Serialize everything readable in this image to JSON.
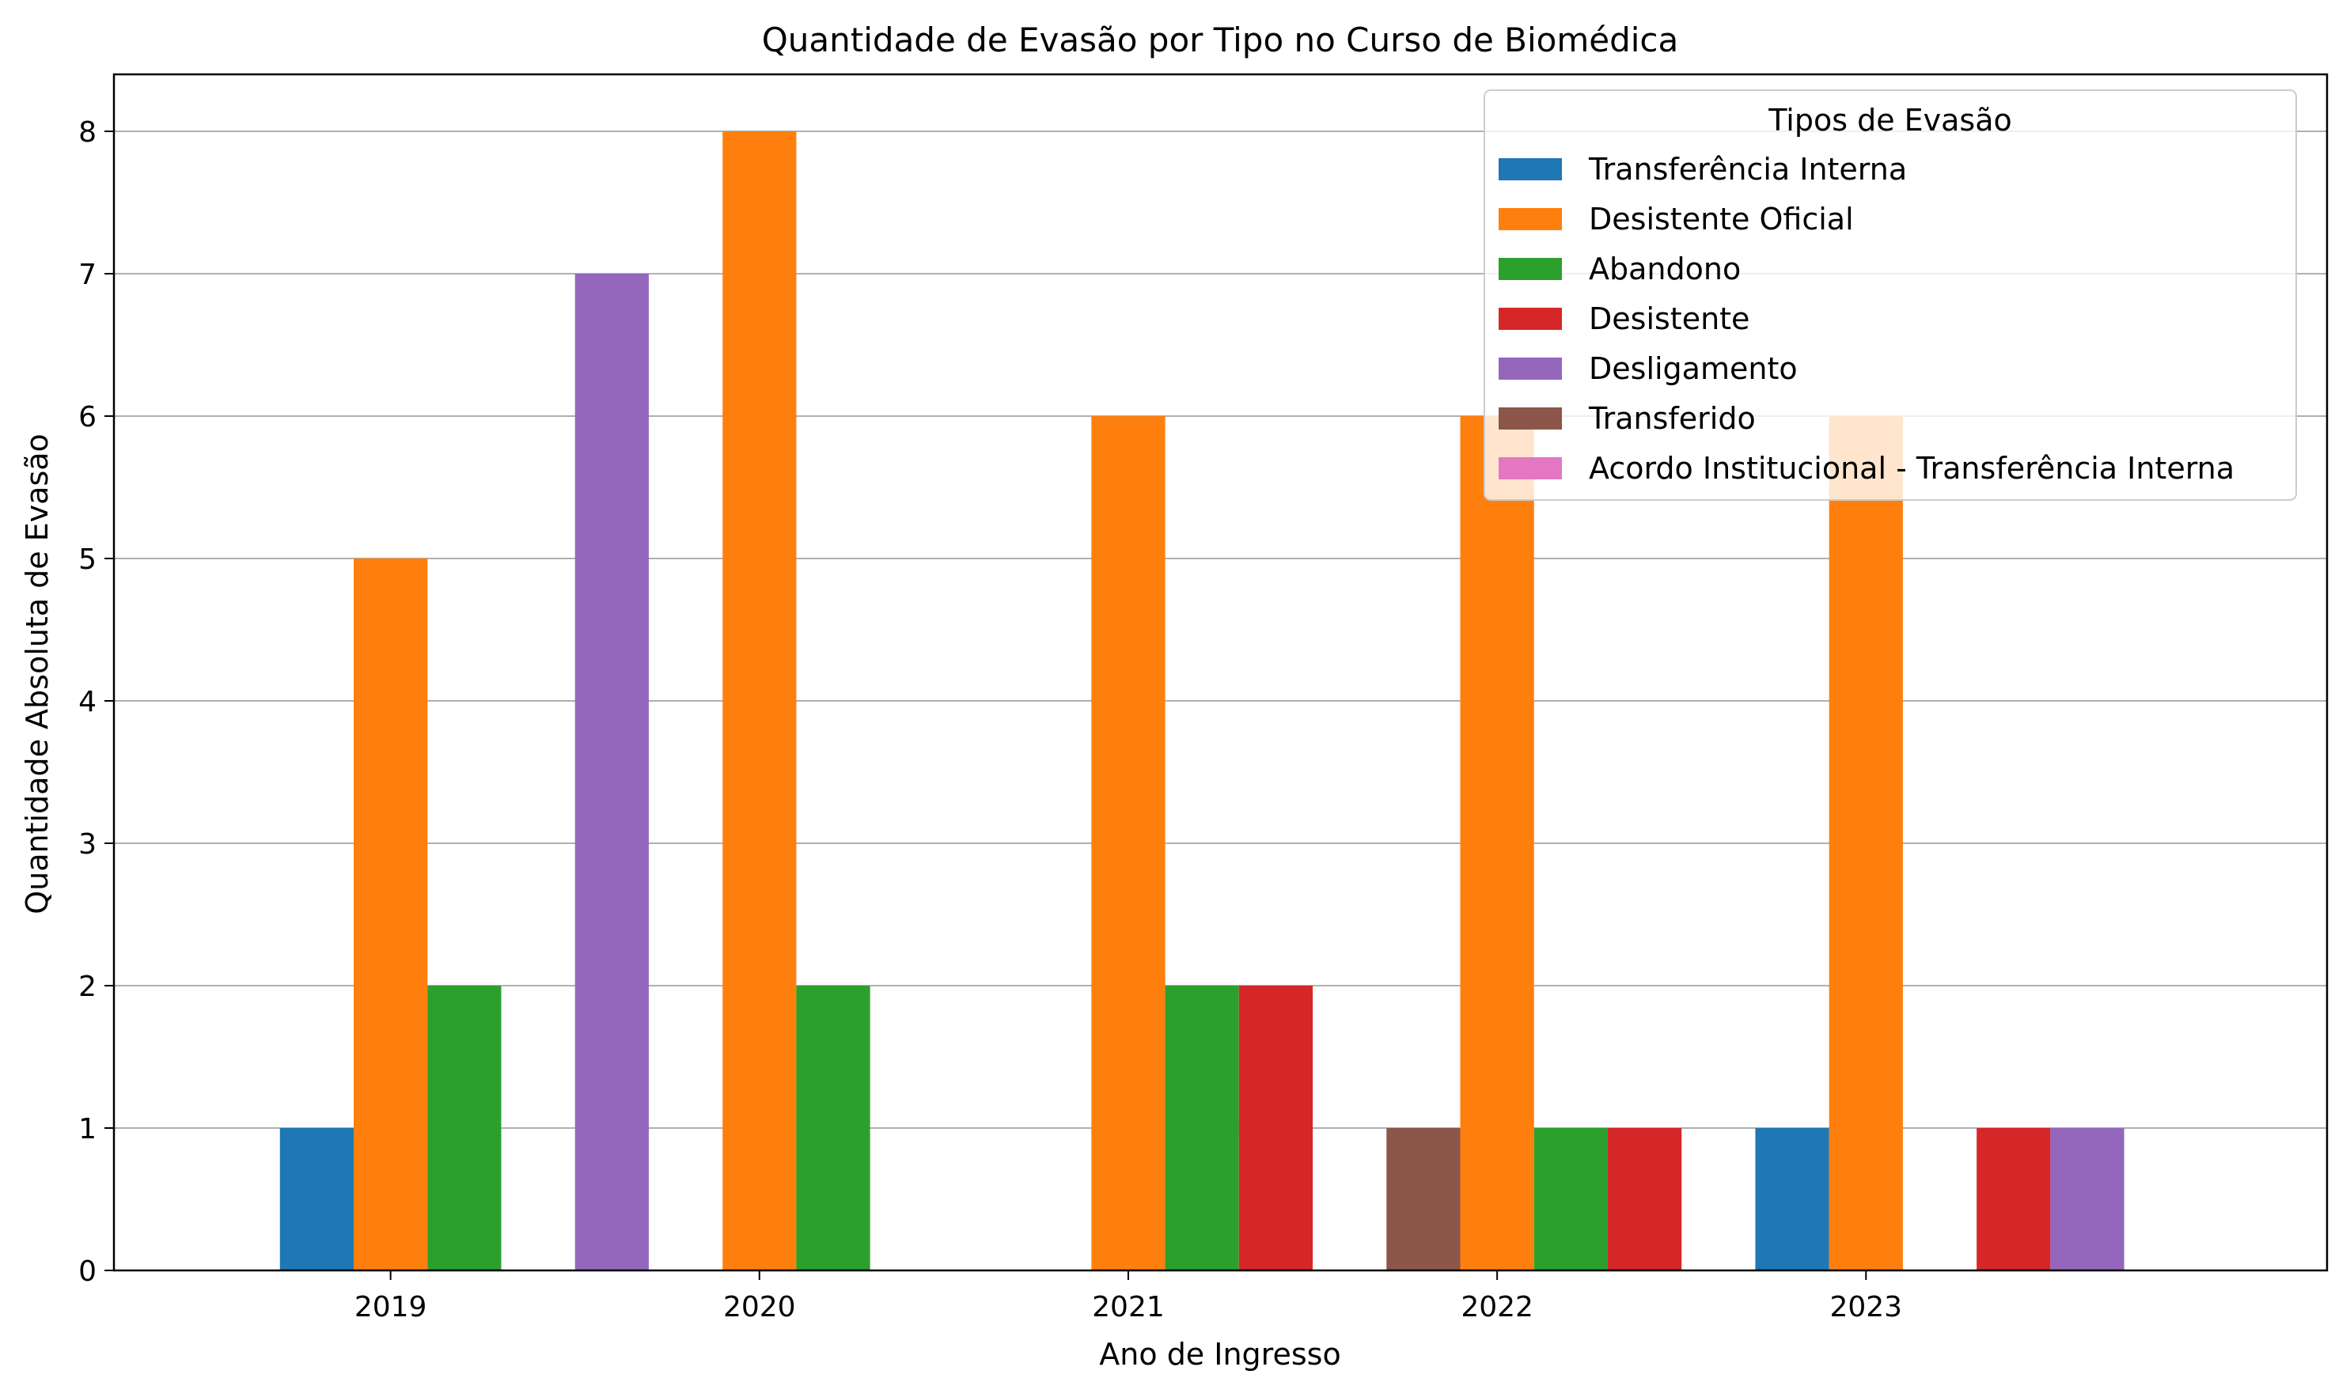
{
  "chart_data": {
    "type": "bar",
    "title": "Quantidade de Evasão por Tipo no Curso de Biomédica",
    "xlabel": "Ano de Ingresso",
    "ylabel": "Quantidade Absoluta de Evasão",
    "categories": [
      "2019",
      "2020",
      "2021",
      "2022",
      "2023"
    ],
    "ylim": [
      0,
      8.4
    ],
    "yticks": [
      0,
      1,
      2,
      3,
      4,
      5,
      6,
      7,
      8
    ],
    "grid": "y",
    "legend": {
      "title": "Tipos de Evasão",
      "placement": "top-right"
    },
    "series": [
      {
        "name": "Transferência Interna",
        "color": "#1f77b4",
        "values": [
          1,
          0,
          0,
          0,
          1
        ]
      },
      {
        "name": "Desistente Oficial",
        "color": "#ff7f0e",
        "values": [
          5,
          8,
          6,
          6,
          6
        ]
      },
      {
        "name": "Abandono",
        "color": "#2ca02c",
        "values": [
          2,
          2,
          2,
          1,
          0
        ]
      },
      {
        "name": "Desistente",
        "color": "#d62728",
        "values": [
          0,
          0,
          2,
          1,
          1
        ]
      },
      {
        "name": "Desligamento",
        "color": "#9467bd",
        "values": [
          7,
          0,
          0,
          0,
          1
        ]
      },
      {
        "name": "Transferido",
        "color": "#8c564b",
        "values": [
          0,
          0,
          1,
          0,
          0
        ]
      },
      {
        "name": "Acordo Institucional - Transferência Interna",
        "color": "#e377c2",
        "values": [
          0,
          0,
          0,
          0,
          0
        ]
      }
    ]
  }
}
